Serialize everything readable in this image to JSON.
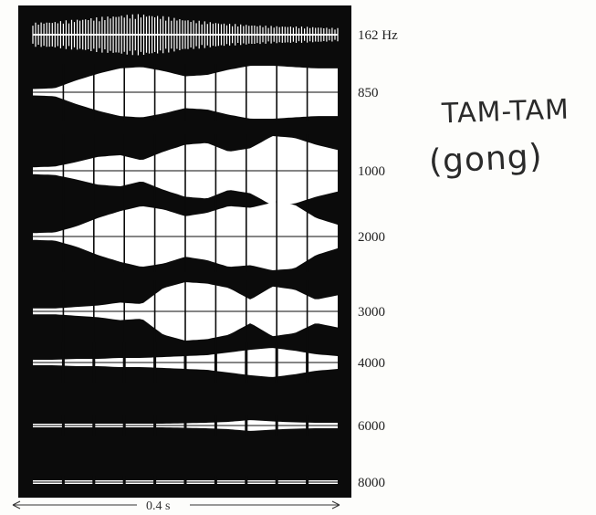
{
  "frequency_labels": [
    "162 Hz",
    "850",
    "1000",
    "2000",
    "3000",
    "4000",
    "6000",
    "8000"
  ],
  "duration_label": "0.4 s",
  "handwritten_note": {
    "title": "TAM-TAM",
    "subtitle": "(gong)"
  },
  "colors": {
    "panel": "#0b0b0b",
    "envelope": "#ffffff",
    "background": "#fdfdfb",
    "ink": "#222222"
  },
  "bands": [
    {
      "label": "162 Hz",
      "type": "oscillation",
      "amplitude": [
        0.55,
        0.6,
        0.7,
        0.8,
        0.9,
        0.95,
        0.85,
        0.7,
        0.6,
        0.5,
        0.45,
        0.4,
        0.38,
        0.35,
        0.3
      ]
    },
    {
      "label": "850",
      "type": "envelope",
      "amplitude": [
        0.12,
        0.15,
        0.45,
        0.7,
        0.9,
        0.95,
        0.8,
        0.6,
        0.65,
        0.85,
        1.0,
        1.0,
        0.95,
        0.9,
        0.9
      ]
    },
    {
      "label": "1000",
      "type": "envelope",
      "amplitude": [
        0.1,
        0.12,
        0.25,
        0.4,
        0.45,
        0.3,
        0.55,
        0.75,
        0.8,
        0.55,
        0.65,
        1.0,
        0.95,
        0.75,
        0.6
      ]
    },
    {
      "label": "2000",
      "type": "envelope",
      "amplitude": [
        0.1,
        0.12,
        0.3,
        0.55,
        0.75,
        0.9,
        0.8,
        0.6,
        0.7,
        0.9,
        0.85,
        1.0,
        0.95,
        0.55,
        0.35
      ]
    },
    {
      "label": "3000",
      "type": "envelope",
      "amplitude": [
        0.1,
        0.1,
        0.15,
        0.2,
        0.3,
        0.25,
        0.8,
        1.0,
        0.95,
        0.8,
        0.4,
        0.85,
        0.75,
        0.4,
        0.55
      ]
    },
    {
      "label": "4000",
      "type": "envelope",
      "amplitude": [
        0.15,
        0.15,
        0.2,
        0.2,
        0.25,
        0.25,
        0.3,
        0.35,
        0.4,
        0.55,
        0.7,
        0.8,
        0.65,
        0.45,
        0.35
      ]
    },
    {
      "label": "6000",
      "type": "envelope",
      "amplitude": [
        0.2,
        0.2,
        0.2,
        0.2,
        0.2,
        0.2,
        0.2,
        0.25,
        0.3,
        0.4,
        0.6,
        0.45,
        0.35,
        0.3,
        0.3
      ]
    },
    {
      "label": "8000",
      "type": "envelope",
      "amplitude": [
        0.25,
        0.25,
        0.25,
        0.25,
        0.25,
        0.25,
        0.25,
        0.25,
        0.25,
        0.25,
        0.25,
        0.25,
        0.25,
        0.25,
        0.25
      ]
    }
  ]
}
